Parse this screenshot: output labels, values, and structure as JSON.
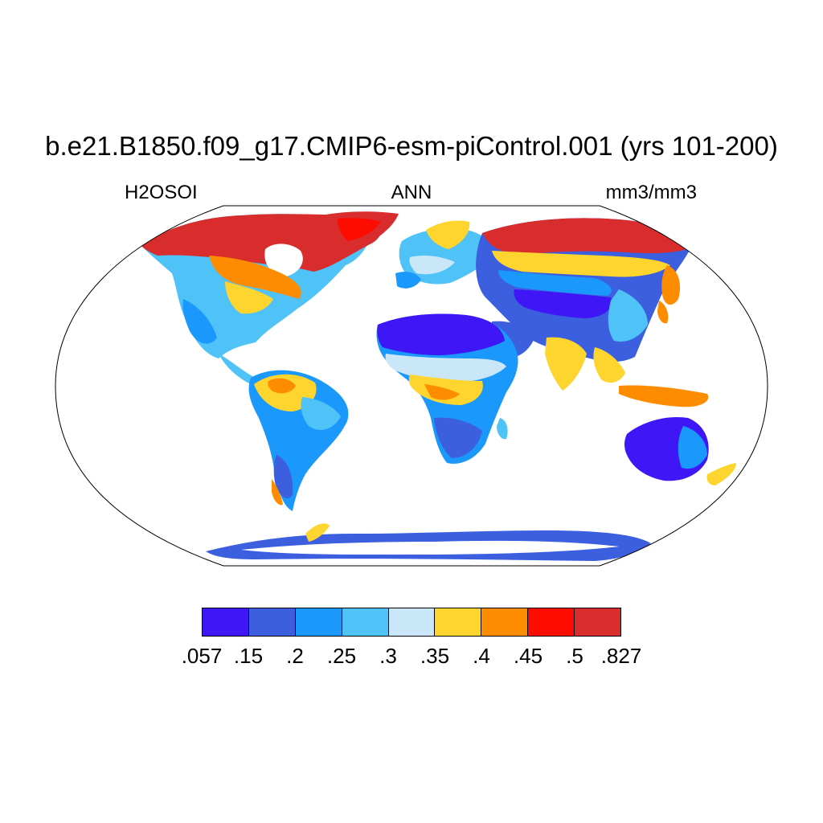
{
  "title": "b.e21.B1850.f09_g17.CMIP6-esm-piControl.001 (yrs 101-200)",
  "variable": "H2OSOI",
  "season": "ANN",
  "units": "mm3/mm3",
  "colorbar": {
    "colors": [
      "#3f16f5",
      "#3b5fdf",
      "#1a98fc",
      "#4fc2f7",
      "#c9e7f8",
      "#fed42e",
      "#fe8c00",
      "#fd0c00",
      "#d82c2d"
    ],
    "labels": [
      ".057",
      ".15",
      ".2",
      ".25",
      ".3",
      ".35",
      ".4",
      ".45",
      ".5",
      ".827"
    ]
  }
}
